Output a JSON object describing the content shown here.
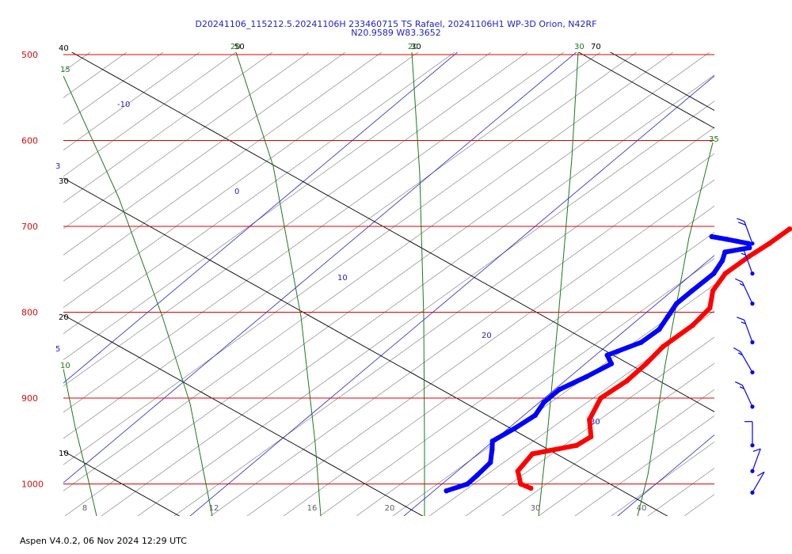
{
  "header": {
    "title_line1": "D20241106_115212.5.20241106H 233460715 TS Rafael, 20241106H1 WP-3D Orion, N42RF",
    "title_line2": "N20.9589 W83.3652"
  },
  "footer": {
    "version_text": "Aspen V4.0.2, 06 Nov 2024  12:29 UTC"
  },
  "colors": {
    "isobar": "#e00000",
    "isotherm": "#8a8a8a",
    "dry_adiabat": "#000000",
    "moist_adiabat": "#1a7a1a",
    "mixing_ratio": "#2222cc",
    "temperature": "#ff0000",
    "dewpoint": "#0000ff",
    "wind": "#0000ff"
  },
  "chart_data": {
    "type": "skew-t",
    "pressure_axis": {
      "ticks": [
        "500",
        "600",
        "700",
        "800",
        "900",
        "1000"
      ],
      "range_hpa": [
        500,
        1035
      ]
    },
    "temperature_axis": {
      "ticks": [
        "8",
        "12",
        "16",
        "20",
        "30",
        "40"
      ]
    },
    "line_labels": {
      "dry_adiabat": [
        "40",
        "50",
        "30",
        "70",
        "30",
        "20",
        "10"
      ],
      "moist_adiabat": [
        "20",
        "20",
        "30",
        "15",
        "35",
        "10"
      ],
      "mixing_ratio": [
        "-10",
        "0",
        "10",
        "20",
        "30",
        "3",
        "5"
      ]
    },
    "series": [
      {
        "key": "temperature",
        "points": [
          [
            703,
            20.6
          ],
          [
            720,
            20.6
          ],
          [
            735,
            20.5
          ],
          [
            755,
            20.5
          ],
          [
            775,
            21.0
          ],
          [
            795,
            21.9
          ],
          [
            815,
            22.2
          ],
          [
            840,
            22.2
          ],
          [
            860,
            22.5
          ],
          [
            880,
            22.7
          ],
          [
            900,
            22.6
          ],
          [
            925,
            23.4
          ],
          [
            945,
            24.5
          ],
          [
            955,
            24.4
          ],
          [
            965,
            23.0
          ],
          [
            985,
            23.4
          ],
          [
            1000,
            24.3
          ],
          [
            1005,
            25.0
          ]
        ]
      },
      {
        "key": "dewpoint",
        "points": [
          [
            712,
            17.7
          ],
          [
            715,
            18.5
          ],
          [
            720,
            19.7
          ],
          [
            725,
            20.0
          ],
          [
            730,
            19.2
          ],
          [
            740,
            19.6
          ],
          [
            755,
            20.0
          ],
          [
            775,
            20.1
          ],
          [
            790,
            20.2
          ],
          [
            805,
            20.6
          ],
          [
            820,
            21.0
          ],
          [
            835,
            21.0
          ],
          [
            850,
            20.3
          ],
          [
            860,
            21.0
          ],
          [
            875,
            20.7
          ],
          [
            890,
            20.3
          ],
          [
            905,
            20.4
          ],
          [
            920,
            20.8
          ],
          [
            935,
            20.7
          ],
          [
            950,
            20.5
          ],
          [
            960,
            21.0
          ],
          [
            975,
            21.7
          ],
          [
            990,
            21.9
          ],
          [
            1000,
            22.0
          ],
          [
            1008,
            21.5
          ]
        ]
      }
    ],
    "wind_barbs": [
      {
        "p": 720,
        "dir": 200,
        "speed": 20
      },
      {
        "p": 755,
        "dir": 200,
        "speed": 15
      },
      {
        "p": 790,
        "dir": 205,
        "speed": 15
      },
      {
        "p": 835,
        "dir": 200,
        "speed": 15
      },
      {
        "p": 870,
        "dir": 210,
        "speed": 15
      },
      {
        "p": 910,
        "dir": 205,
        "speed": 15
      },
      {
        "p": 955,
        "dir": 180,
        "speed": 10
      },
      {
        "p": 985,
        "dir": 160,
        "speed": 10
      },
      {
        "p": 1010,
        "dir": 150,
        "speed": 10
      }
    ]
  }
}
